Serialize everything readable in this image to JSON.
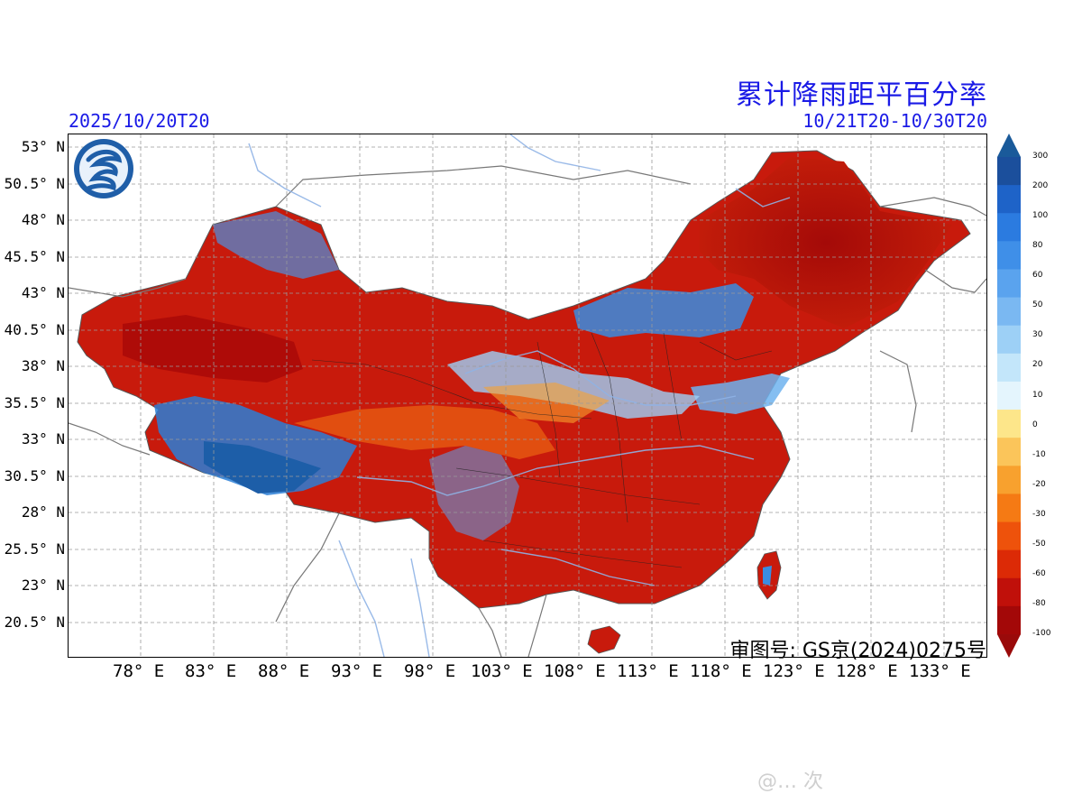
{
  "header": {
    "title": "累计降雨距平百分率",
    "init_time": "2025/10/20T20",
    "valid_range": "10/21T20-10/30T20"
  },
  "map": {
    "approval_number": "审图号: GS京(2024)0275号",
    "lat_labels": [
      "53° N",
      "50.5° N",
      "48° N",
      "45.5° N",
      "43° N",
      "40.5° N",
      "38° N",
      "35.5° N",
      "33° N",
      "30.5° N",
      "28° N",
      "25.5° N",
      "23° N",
      "20.5° N"
    ],
    "lon_labels": [
      "78° E",
      "83° E",
      "88° E",
      "93° E",
      "98° E",
      "103° E",
      "108° E",
      "113° E",
      "118° E",
      "123° E",
      "128° E",
      "133° E"
    ],
    "logo_icon": "weather-logo-icon"
  },
  "colorbar": {
    "labels": [
      "300",
      "200",
      "100",
      "80",
      "60",
      "50",
      "30",
      "20",
      "10",
      "0",
      "-10",
      "-20",
      "-30",
      "-50",
      "-60",
      "-80",
      "-100"
    ],
    "colors": [
      "#1b4f9c",
      "#1e63c8",
      "#2b7be0",
      "#3f8fe8",
      "#5aa3ee",
      "#7ab8f2",
      "#9dd0f6",
      "#c3e6fa",
      "#e4f5fd",
      "#fde68a",
      "#fbc55a",
      "#f8a12e",
      "#f57a14",
      "#ee520b",
      "#dc2a06",
      "#c0100a",
      "#a30808"
    ],
    "top_color": "#1a5a9a",
    "bottom_color": "#9a0a0a"
  },
  "watermark": {
    "text": "@… 次"
  }
}
